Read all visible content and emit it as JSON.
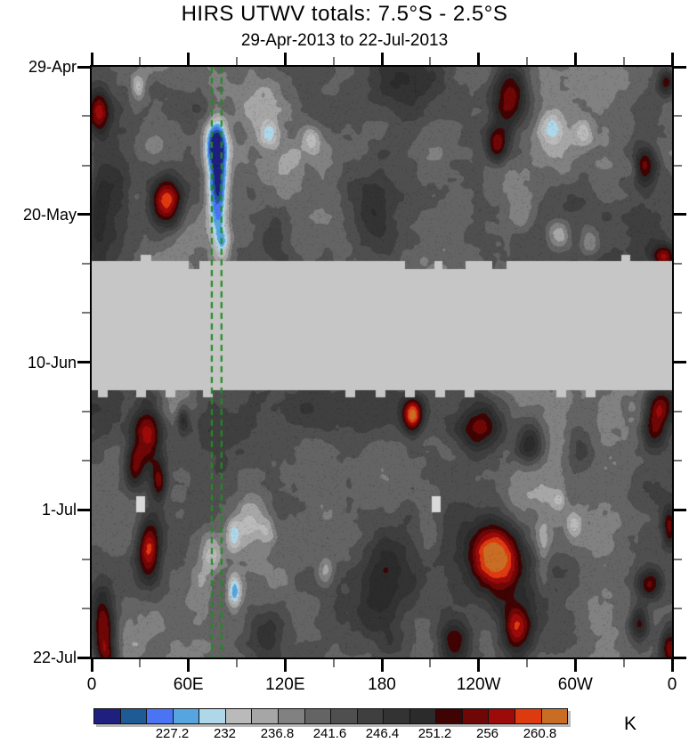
{
  "title": "HIRS UTWV totals: 7.5°S - 2.5°S",
  "subtitle": "29-Apr-2013 to 22-Jul-2013",
  "colorbar": {
    "unit": "K",
    "boundary_labels": [
      "227.2",
      "232",
      "236.8",
      "241.6",
      "246.4",
      "251.2",
      "256",
      "260.8"
    ],
    "label_boundary_indices": [
      3,
      5,
      7,
      9,
      11,
      13,
      15,
      17
    ],
    "level_min_K": 220,
    "level_step_K": 2.4,
    "segment_colors": [
      "#1f1f80",
      "#1e5a96",
      "#4a74f4",
      "#56a5e0",
      "#aed7ea",
      "#bababa",
      "#a6a6a6",
      "#818181",
      "#646464",
      "#4f4f4f",
      "#3f3f3f",
      "#333333",
      "#2b2b2b",
      "#3f0303",
      "#700707",
      "#9c0a0a",
      "#de3a10",
      "#ca6d24"
    ]
  },
  "axes": {
    "x": {
      "majors": [
        {
          "lon": 0,
          "label": "0"
        },
        {
          "lon": 60,
          "label": "60E"
        },
        {
          "lon": 120,
          "label": "120E"
        },
        {
          "lon": 180,
          "label": "180"
        },
        {
          "lon": 240,
          "label": "120W"
        },
        {
          "lon": 300,
          "label": "60W"
        },
        {
          "lon": 360,
          "label": "0"
        }
      ],
      "minor_lons": [
        30,
        90,
        150,
        210,
        270,
        330
      ]
    },
    "y": {
      "majors": [
        {
          "day": 0,
          "label": "29-Apr"
        },
        {
          "day": 21,
          "label": "20-May"
        },
        {
          "day": 42,
          "label": "10-Jun"
        },
        {
          "day": 63,
          "label": "1-Jul"
        },
        {
          "day": 84,
          "label": "22-Jul"
        }
      ],
      "minor_days": [
        7,
        14,
        28,
        35,
        49,
        56,
        70,
        77
      ]
    }
  },
  "chart_data": {
    "type": "heatmap",
    "title": "HIRS UTWV totals: 7.5°S - 2.5°S",
    "subtitle": "29-Apr-2013 to 22-Jul-2013",
    "x_axis": {
      "name": "longitude",
      "range_deg": [
        0,
        360
      ],
      "tick_labels": [
        "0",
        "60E",
        "120E",
        "180",
        "120W",
        "60W",
        "0"
      ]
    },
    "y_axis": {
      "name": "date",
      "start": "29-Apr-2013",
      "end": "22-Jul-2013",
      "range_days": [
        0,
        84
      ],
      "tick_labels": [
        "29-Apr",
        "20-May",
        "10-Jun",
        "1-Jul",
        "22-Jul"
      ]
    },
    "values_unit": "K",
    "value_levels_K": {
      "min": 220,
      "step": 2.4,
      "count": 18
    },
    "field_mean_K": 240.8,
    "field_noise_amp_K": 8.0,
    "missing_band": {
      "start_day": 27.6,
      "end_day": 46.0,
      "start_date_approx": "26-May-2013",
      "end_date_approx": "14-Jun-2013",
      "color": "#c6c6c6",
      "bottom_notches_frac": [
        0.018,
        0.084,
        0.135,
        0.199,
        0.445,
        0.497,
        0.548,
        0.6,
        0.65,
        0.808,
        0.859
      ],
      "top_data_protrusions": [
        {
          "f0": 0.167,
          "f1": 0.185
        },
        {
          "f0": 0.54,
          "f1": 0.59
        },
        {
          "f0": 0.604,
          "f1": 0.644
        },
        {
          "f0": 0.69,
          "f1": 0.715
        }
      ],
      "top_gray_notches": [
        {
          "f0": 0.085,
          "f1": 0.104
        },
        {
          "f0": 0.912,
          "f1": 0.928
        }
      ]
    },
    "data_gaps": {
      "color": "#d9d9d9",
      "cells": [
        {
          "lon": 30.4,
          "day": 62.2
        },
        {
          "lon": 213.7,
          "day": 62.2
        }
      ]
    },
    "reference_lines": {
      "color": "#228B22",
      "style": "dashed",
      "lons": [
        74.5,
        80.5
      ]
    },
    "features": [
      {
        "lon": 3.9,
        "day": 6.3,
        "amp": 13,
        "sx": 5,
        "sy": 2.2
      },
      {
        "lon": 46.4,
        "day": 19.3,
        "amp": 20,
        "sx": 7,
        "sy": 2.6
      },
      {
        "lon": 77.8,
        "day": 16.5,
        "amp": -21,
        "sx": 4.5,
        "sy": 5.5
      },
      {
        "lon": 76.7,
        "day": 10.5,
        "amp": -13,
        "sx": 5,
        "sy": 2.2
      },
      {
        "lon": 81.2,
        "day": 25,
        "amp": -9,
        "sx": 3.5,
        "sy": 1.8
      },
      {
        "lon": 28.7,
        "day": 2.8,
        "amp": -8,
        "sx": 3,
        "sy": 1.2
      },
      {
        "lon": 109.9,
        "day": 9.5,
        "amp": -7,
        "sx": 4,
        "sy": 1.3
      },
      {
        "lon": 136.4,
        "day": 10.1,
        "amp": -7,
        "sx": 4,
        "sy": 1.3
      },
      {
        "lon": 285.5,
        "day": 8.6,
        "amp": -8,
        "sx": 5,
        "sy": 1.6
      },
      {
        "lon": 304.8,
        "day": 9.5,
        "amp": -7,
        "sx": 4,
        "sy": 1.4
      },
      {
        "lon": 335.2,
        "day": 14.3,
        "amp": -7,
        "sx": 4,
        "sy": 1.4
      },
      {
        "lon": 289.9,
        "day": 23.7,
        "amp": -8,
        "sx": 5,
        "sy": 1.6
      },
      {
        "lon": 308.6,
        "day": 24.7,
        "amp": -7,
        "sx": 4,
        "sy": 1.4
      },
      {
        "lon": 259,
        "day": 4.4,
        "amp": 16,
        "sx": 8,
        "sy": 3.4
      },
      {
        "lon": 251.2,
        "day": 11,
        "amp": 13,
        "sx": 5,
        "sy": 1.8
      },
      {
        "lon": 356.2,
        "day": 2.2,
        "amp": 11,
        "sx": 3.5,
        "sy": 1.3
      },
      {
        "lon": 341.8,
        "day": 14.1,
        "amp": 14,
        "sx": 6,
        "sy": 2
      },
      {
        "lon": 354.5,
        "day": 26.9,
        "amp": 12,
        "sx": 5,
        "sy": 1.3
      },
      {
        "lon": 175,
        "day": 20.3,
        "amp": 7,
        "sx": 12,
        "sy": 5
      },
      {
        "lon": 191.6,
        "day": 3.2,
        "amp": 6,
        "sx": 14,
        "sy": 3.5
      },
      {
        "lon": 114.3,
        "day": 24.1,
        "amp": 5,
        "sx": 8,
        "sy": 2.5
      },
      {
        "lon": 13.8,
        "day": 17.7,
        "amp": 5,
        "sx": 7,
        "sy": 5
      },
      {
        "lon": 39.8,
        "day": 9.5,
        "amp": -4,
        "sx": 7,
        "sy": 2.5
      },
      {
        "lon": 119.8,
        "day": 13.9,
        "amp": -4,
        "sx": 8,
        "sy": 2.5
      },
      {
        "lon": 266.2,
        "day": 20.5,
        "amp": -5,
        "sx": 7,
        "sy": 2.5
      },
      {
        "lon": 105,
        "day": 5,
        "amp": -3,
        "sx": 15,
        "sy": 4
      },
      {
        "lon": 330,
        "day": 14,
        "amp": 3,
        "sx": 30,
        "sy": 10
      },
      {
        "lon": 5,
        "day": 18,
        "amp": 3,
        "sx": 8,
        "sy": 12
      },
      {
        "lon": 180,
        "day": 66,
        "amp": 2,
        "sx": 120,
        "sy": 16
      },
      {
        "lon": 34.2,
        "day": 52.3,
        "amp": 16,
        "sx": 6.5,
        "sy": 3.5
      },
      {
        "lon": 26,
        "day": 57,
        "amp": 12,
        "sx": 4.5,
        "sy": 2.2
      },
      {
        "lon": 35.3,
        "day": 68.7,
        "amp": 17,
        "sx": 5,
        "sy": 3
      },
      {
        "lon": 41.4,
        "day": 58.9,
        "amp": 12,
        "sx": 3.5,
        "sy": 2
      },
      {
        "lon": 6.6,
        "day": 79.2,
        "amp": 14,
        "sx": 5,
        "sy": 3.5
      },
      {
        "lon": 56.3,
        "day": 50,
        "amp": 9,
        "sx": 2.8,
        "sy": 1.4
      },
      {
        "lon": 198.8,
        "day": 49.5,
        "amp": 19,
        "sx": 4.5,
        "sy": 1.8
      },
      {
        "lon": 241.3,
        "day": 50.7,
        "amp": 15,
        "sx": 10,
        "sy": 2.8
      },
      {
        "lon": 271.7,
        "day": 53.2,
        "amp": 10,
        "sx": 6,
        "sy": 2.2
      },
      {
        "lon": 250.7,
        "day": 69.3,
        "amp": 21,
        "sx": 11,
        "sy": 3.6
      },
      {
        "lon": 351.7,
        "day": 48.1,
        "amp": 13,
        "sx": 6,
        "sy": 1.8
      },
      {
        "lon": 349,
        "day": 51.6,
        "amp": 12,
        "sx": 6,
        "sy": 2.2
      },
      {
        "lon": 358,
        "day": 65.2,
        "amp": 11,
        "sx": 3,
        "sy": 2
      },
      {
        "lon": 346.2,
        "day": 73.5,
        "amp": 11,
        "sx": 5.5,
        "sy": 1.6
      },
      {
        "lon": 339.6,
        "day": 79.2,
        "amp": 12,
        "sx": 4.5,
        "sy": 1.8
      },
      {
        "lon": 263.4,
        "day": 79.8,
        "amp": 15,
        "sx": 7,
        "sy": 2.8
      },
      {
        "lon": 224.7,
        "day": 81.7,
        "amp": 13,
        "sx": 7,
        "sy": 2.5
      },
      {
        "lon": 358.4,
        "day": 82.7,
        "amp": 11,
        "sx": 4,
        "sy": 2
      },
      {
        "lon": 9.4,
        "day": 83.6,
        "amp": 12,
        "sx": 5,
        "sy": 2
      },
      {
        "lon": 97.7,
        "day": 64.6,
        "amp": -11,
        "sx": 7,
        "sy": 2.6
      },
      {
        "lon": 87.8,
        "day": 66.5,
        "amp": -8,
        "sx": 3,
        "sy": 1.6
      },
      {
        "lon": 108.8,
        "day": 66,
        "amp": -8,
        "sx": 4,
        "sy": 1.6
      },
      {
        "lon": 88.3,
        "day": 74.5,
        "amp": -13,
        "sx": 3,
        "sy": 1.6
      },
      {
        "lon": 74,
        "day": 69.3,
        "amp": -7,
        "sx": 4.5,
        "sy": 1.6
      },
      {
        "lon": 144.7,
        "day": 72,
        "amp": -7,
        "sx": 4,
        "sy": 1.4
      },
      {
        "lon": 299.3,
        "day": 65,
        "amp": -6,
        "sx": 3.5,
        "sy": 1.3
      },
      {
        "lon": 289.9,
        "day": 61.4,
        "amp": -6,
        "sx": 3,
        "sy": 1
      },
      {
        "lon": 180.6,
        "day": 73.5,
        "amp": 6,
        "sx": 10,
        "sy": 6
      },
      {
        "lon": 300.9,
        "day": 54.5,
        "amp": 6,
        "sx": 7,
        "sy": 4
      },
      {
        "lon": 70.1,
        "day": 50.7,
        "amp": 5,
        "sx": 8,
        "sy": 3
      },
      {
        "lon": 208.2,
        "day": 65,
        "amp": -4,
        "sx": 6,
        "sy": 3
      },
      {
        "lon": 67.4,
        "day": 73.5,
        "amp": -4,
        "sx": 6,
        "sy": 3
      },
      {
        "lon": 279.9,
        "day": 69,
        "amp": -4,
        "sx": 3,
        "sy": 4
      },
      {
        "lon": 108.8,
        "day": 80.4,
        "amp": 5,
        "sx": 8,
        "sy": 3
      },
      {
        "lon": 3.9,
        "day": 20.9,
        "amp": 5,
        "sx": 4,
        "sy": 6
      }
    ]
  }
}
